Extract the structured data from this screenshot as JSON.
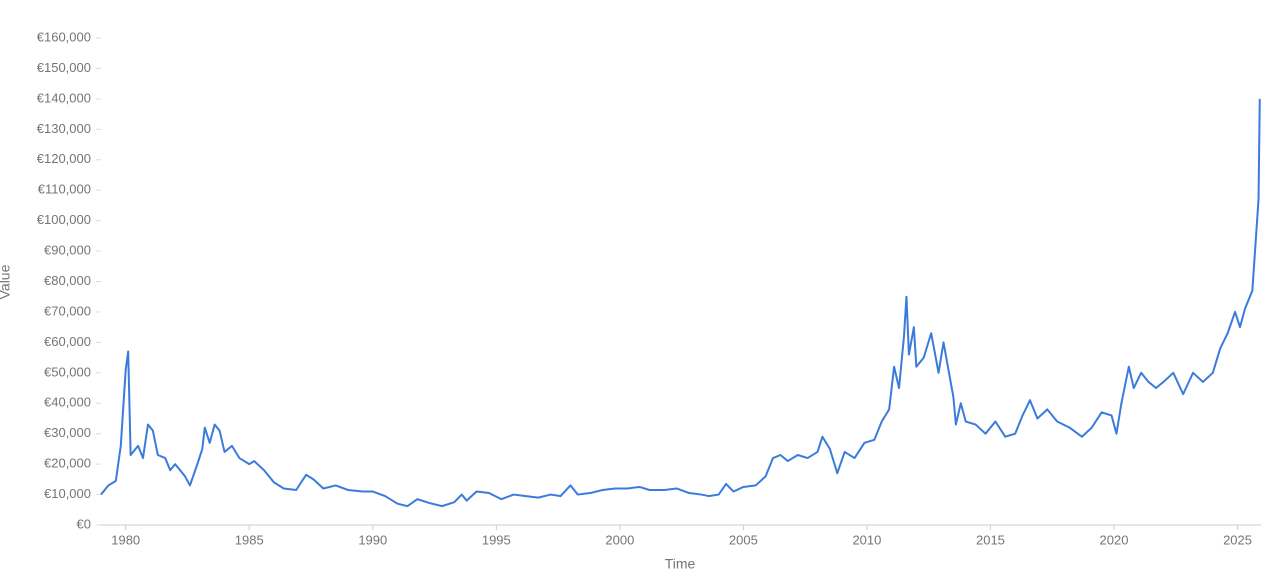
{
  "chart_data": {
    "type": "line",
    "x_label": "Time",
    "y_label": "Value",
    "x": [
      1979.0,
      1979.3,
      1979.6,
      1979.8,
      1980.0,
      1980.1,
      1980.2,
      1980.5,
      1980.7,
      1980.9,
      1981.1,
      1981.3,
      1981.6,
      1981.8,
      1982.0,
      1982.4,
      1982.6,
      1982.9,
      1983.1,
      1983.2,
      1983.4,
      1983.6,
      1983.8,
      1984.0,
      1984.3,
      1984.6,
      1985.0,
      1985.2,
      1985.6,
      1986.0,
      1986.4,
      1986.9,
      1987.3,
      1987.6,
      1988.0,
      1988.5,
      1989.0,
      1989.6,
      1990.0,
      1990.5,
      1991.0,
      1991.4,
      1991.8,
      1992.3,
      1992.8,
      1993.3,
      1993.6,
      1993.8,
      1994.2,
      1994.7,
      1995.2,
      1995.7,
      1996.2,
      1996.7,
      1997.2,
      1997.6,
      1998.0,
      1998.3,
      1998.8,
      1999.3,
      1999.8,
      2000.3,
      2000.8,
      2001.2,
      2001.8,
      2002.3,
      2002.8,
      2003.3,
      2003.6,
      2004.0,
      2004.3,
      2004.6,
      2005.0,
      2005.5,
      2005.9,
      2006.2,
      2006.5,
      2006.8,
      2007.2,
      2007.6,
      2008.0,
      2008.2,
      2008.5,
      2008.8,
      2009.1,
      2009.5,
      2009.9,
      2010.3,
      2010.6,
      2010.9,
      2011.1,
      2011.3,
      2011.5,
      2011.6,
      2011.7,
      2011.9,
      2012.0,
      2012.3,
      2012.6,
      2012.9,
      2013.1,
      2013.3,
      2013.5,
      2013.6,
      2013.8,
      2014.0,
      2014.4,
      2014.8,
      2015.2,
      2015.6,
      2016.0,
      2016.3,
      2016.6,
      2016.9,
      2017.3,
      2017.7,
      2018.2,
      2018.7,
      2019.1,
      2019.5,
      2019.9,
      2020.1,
      2020.3,
      2020.6,
      2020.8,
      2021.1,
      2021.4,
      2021.7,
      2022.0,
      2022.4,
      2022.8,
      2023.2,
      2023.6,
      2024.0,
      2024.3,
      2024.6,
      2024.9,
      2025.1,
      2025.3,
      2025.6,
      2025.75,
      2025.85,
      2025.9
    ],
    "series": [
      {
        "name": "Value",
        "color": "#3a7bdc",
        "values": [
          10000,
          13000,
          14500,
          26000,
          51000,
          57000,
          23000,
          26000,
          22000,
          33000,
          31000,
          23000,
          22000,
          18000,
          20000,
          16000,
          13000,
          20000,
          25000,
          32000,
          27000,
          33000,
          31000,
          24000,
          26000,
          22000,
          20000,
          21000,
          18000,
          14000,
          12000,
          11500,
          16500,
          15000,
          12000,
          13000,
          11500,
          11000,
          11000,
          9500,
          7000,
          6200,
          8500,
          7200,
          6200,
          7500,
          10000,
          8000,
          11000,
          10500,
          8500,
          10000,
          9500,
          9000,
          10000,
          9500,
          13000,
          10000,
          10500,
          11500,
          12000,
          12000,
          12500,
          11500,
          11500,
          12000,
          10500,
          10000,
          9500,
          10000,
          13500,
          11000,
          12500,
          13000,
          16000,
          22000,
          23000,
          21000,
          23000,
          22000,
          24000,
          29000,
          25000,
          17000,
          24000,
          22000,
          27000,
          28000,
          34000,
          38000,
          52000,
          45000,
          62000,
          75000,
          56000,
          65000,
          52000,
          55000,
          63000,
          50000,
          60000,
          51000,
          42000,
          33000,
          40000,
          34000,
          33000,
          30000,
          34000,
          29000,
          30000,
          36000,
          41000,
          35000,
          38000,
          34000,
          32000,
          29000,
          32000,
          37000,
          36000,
          30000,
          40000,
          52000,
          45000,
          50000,
          47000,
          45000,
          47000,
          50000,
          43000,
          50000,
          47000,
          50000,
          58000,
          63000,
          70000,
          65000,
          71000,
          77000,
          95000,
          107000,
          140000
        ]
      }
    ],
    "xlim": [
      1979,
      2025.95
    ],
    "xticks": [
      1980,
      1985,
      1990,
      1995,
      2000,
      2005,
      2010,
      2015,
      2020,
      2025
    ],
    "ylim": [
      0,
      160000
    ],
    "yticks": [
      {
        "value": 0,
        "label": "€0"
      },
      {
        "value": 10000,
        "label": "€10,000"
      },
      {
        "value": 20000,
        "label": "€20,000"
      },
      {
        "value": 30000,
        "label": "€30,000"
      },
      {
        "value": 40000,
        "label": "€40,000"
      },
      {
        "value": 50000,
        "label": "€50,000"
      },
      {
        "value": 60000,
        "label": "€60,000"
      },
      {
        "value": 70000,
        "label": "€70,000"
      },
      {
        "value": 80000,
        "label": "€80,000"
      },
      {
        "value": 90000,
        "label": "€90,000"
      },
      {
        "value": 100000,
        "label": "€100,000"
      },
      {
        "value": 110000,
        "label": "€110,000"
      },
      {
        "value": 120000,
        "label": "€120,000"
      },
      {
        "value": 130000,
        "label": "€130,000"
      },
      {
        "value": 140000,
        "label": "€140,000"
      },
      {
        "value": 150000,
        "label": "€150,000"
      },
      {
        "value": 160000,
        "label": "€160,000"
      }
    ],
    "grid": false
  }
}
